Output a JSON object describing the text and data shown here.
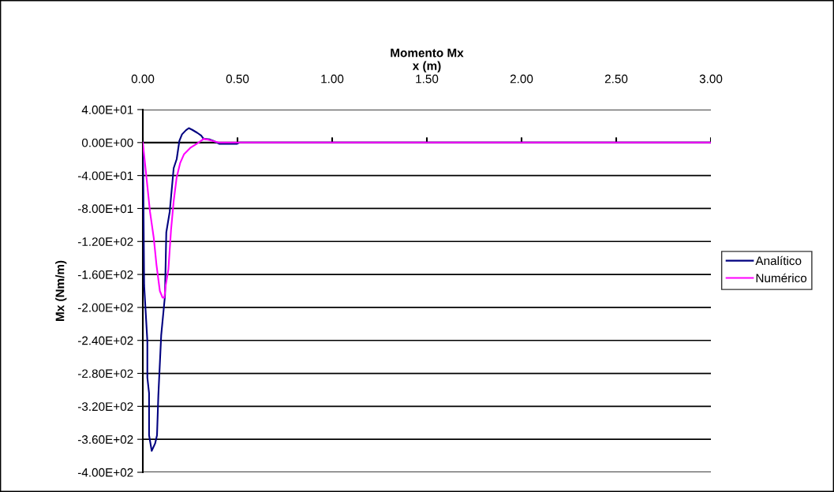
{
  "chart_data": {
    "type": "line",
    "title": "Momento Mx",
    "xlabel": "x (m)",
    "ylabel": "Mx (Nm/m)",
    "xlim": [
      0,
      3
    ],
    "xticks": [
      {
        "value": 0,
        "label": "0.00"
      },
      {
        "value": 0.5,
        "label": "0.50"
      },
      {
        "value": 1,
        "label": "1.00"
      },
      {
        "value": 1.5,
        "label": "1.50"
      },
      {
        "value": 2,
        "label": "2.00"
      },
      {
        "value": 2.5,
        "label": "2.50"
      },
      {
        "value": 3,
        "label": "3.00"
      }
    ],
    "ylim": [
      -400,
      40
    ],
    "yticks": [
      {
        "value": 40,
        "label": "4.00E+01"
      },
      {
        "value": 0,
        "label": "0.00E+00"
      },
      {
        "value": -40,
        "label": "-4.00E+01"
      },
      {
        "value": -80,
        "label": "-8.00E+01"
      },
      {
        "value": -120,
        "label": "-1.20E+02"
      },
      {
        "value": -160,
        "label": "-1.60E+02"
      },
      {
        "value": -200,
        "label": "-2.00E+02"
      },
      {
        "value": -240,
        "label": "-2.40E+02"
      },
      {
        "value": -280,
        "label": "-2.80E+02"
      },
      {
        "value": -320,
        "label": "-3.20E+02"
      },
      {
        "value": -360,
        "label": "-3.60E+02"
      },
      {
        "value": -400,
        "label": "-4.00E+02"
      }
    ],
    "grid": "y",
    "legend": "right",
    "marker": "none",
    "line_style": "solid",
    "series": [
      {
        "name": "Analítico",
        "color": "#000080",
        "x": [
          0,
          0.003,
          0.007,
          0.024,
          0.024,
          0.033,
          0.033,
          0.047,
          0.065,
          0.075,
          0.082,
          0.097,
          0.117,
          0.124,
          0.142,
          0.163,
          0.179,
          0.193,
          0.207,
          0.228,
          0.243,
          0.26,
          0.288,
          0.308,
          0.318,
          0.326,
          0.354,
          0.371,
          0.405,
          0.496,
          0.51,
          3.0
        ],
        "values": [
          0,
          -60,
          -173,
          -241,
          -285,
          -304,
          -355,
          -374,
          -365,
          -355,
          -307,
          -234,
          -186,
          -109,
          -84,
          -31,
          -20,
          2,
          10,
          15,
          17.5,
          15.6,
          11.8,
          8.6,
          5.5,
          4.5,
          3.8,
          2.2,
          -1.6,
          -1.6,
          0,
          0
        ]
      },
      {
        "name": "Numérico",
        "color": "#ff00ff",
        "x": [
          0,
          0.021,
          0.038,
          0.058,
          0.072,
          0.09,
          0.104,
          0.114,
          0.121,
          0.135,
          0.149,
          0.163,
          0.179,
          0.197,
          0.218,
          0.253,
          0.288,
          0.322,
          0.35,
          0.4,
          3.0
        ],
        "values": [
          0,
          -46,
          -84,
          -116,
          -148,
          -180,
          -188,
          -188,
          -173,
          -154,
          -106,
          -71,
          -42,
          -25,
          -14,
          -6,
          -1,
          4.5,
          3.2,
          0,
          0
        ]
      }
    ]
  }
}
